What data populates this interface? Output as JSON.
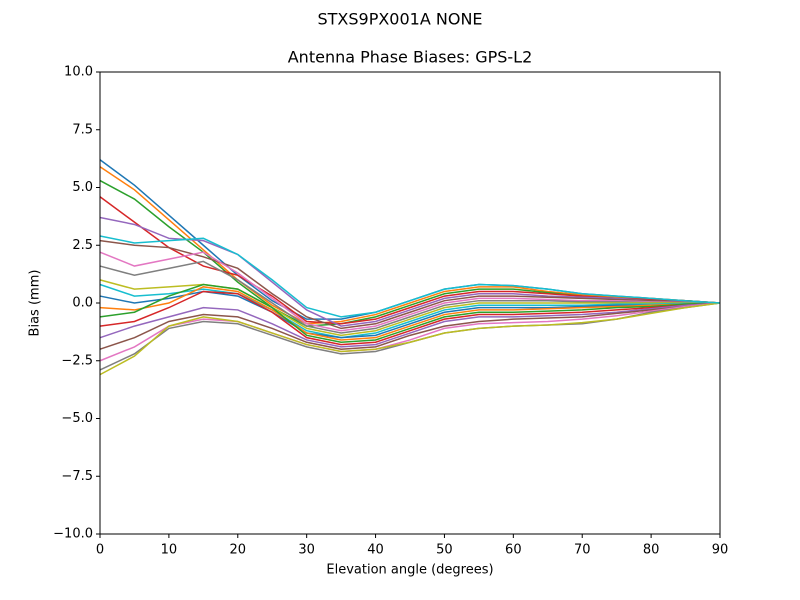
{
  "chart_data": {
    "type": "line",
    "suptitle": "STXS9PX001A      NONE",
    "title": "Antenna Phase Biases: GPS-L2",
    "xlabel": "Elevation angle (degrees)",
    "ylabel": "Bias (mm)",
    "x": [
      0,
      5,
      10,
      15,
      20,
      25,
      30,
      35,
      40,
      45,
      50,
      55,
      60,
      65,
      70,
      75,
      80,
      85,
      90
    ],
    "xlim": [
      0,
      90
    ],
    "xticks": [
      0,
      10,
      20,
      30,
      40,
      50,
      60,
      70,
      80,
      90
    ],
    "ylim": [
      -10,
      10
    ],
    "yticks": [
      {
        "value": -10,
        "label": "−10.0"
      },
      {
        "value": -7.5,
        "label": "−7.5"
      },
      {
        "value": -5,
        "label": "−5.0"
      },
      {
        "value": -2.5,
        "label": "−2.5"
      },
      {
        "value": 0,
        "label": "0.0"
      },
      {
        "value": 2.5,
        "label": "2.5"
      },
      {
        "value": 5,
        "label": "5.0"
      },
      {
        "value": 7.5,
        "label": "7.5"
      },
      {
        "value": 10,
        "label": "10.0"
      }
    ],
    "series": [
      {
        "color": "#1f77b4",
        "values": [
          6.2,
          5.1,
          3.8,
          2.5,
          1.2,
          0.1,
          -0.7,
          -0.7,
          -0.4,
          0.1,
          0.6,
          0.8,
          0.75,
          0.6,
          0.4,
          0.3,
          0.2,
          0.1,
          0
        ]
      },
      {
        "color": "#ff7f0e",
        "values": [
          5.9,
          4.9,
          3.6,
          2.3,
          1.0,
          -0.1,
          -0.9,
          -0.8,
          -0.5,
          0.0,
          0.5,
          0.7,
          0.7,
          0.5,
          0.35,
          0.25,
          0.2,
          0.1,
          0
        ]
      },
      {
        "color": "#2ca02c",
        "values": [
          5.3,
          4.5,
          3.3,
          2.2,
          0.9,
          -0.2,
          -1.0,
          -0.9,
          -0.6,
          -0.1,
          0.4,
          0.6,
          0.6,
          0.45,
          0.3,
          0.2,
          0.15,
          0.1,
          0
        ]
      },
      {
        "color": "#d62728",
        "values": [
          4.6,
          3.5,
          2.4,
          1.6,
          1.2,
          0.3,
          -0.8,
          -0.9,
          -0.7,
          -0.2,
          0.3,
          0.5,
          0.5,
          0.4,
          0.3,
          0.2,
          0.15,
          0.1,
          0
        ]
      },
      {
        "color": "#9467bd",
        "values": [
          3.7,
          3.4,
          2.8,
          2.7,
          2.1,
          0.9,
          -0.3,
          -1.0,
          -0.8,
          -0.3,
          0.2,
          0.4,
          0.4,
          0.3,
          0.25,
          0.2,
          0.1,
          0.05,
          0
        ]
      },
      {
        "color": "#8c564b",
        "values": [
          2.7,
          2.5,
          2.4,
          2.0,
          1.5,
          0.4,
          -0.6,
          -1.1,
          -0.9,
          -0.4,
          0.1,
          0.3,
          0.3,
          0.25,
          0.2,
          0.15,
          0.1,
          0.05,
          0
        ]
      },
      {
        "color": "#e377c2",
        "values": [
          2.2,
          1.6,
          1.9,
          2.2,
          1.3,
          0.2,
          -0.9,
          -1.2,
          -1.0,
          -0.5,
          0.0,
          0.2,
          0.2,
          0.15,
          0.1,
          0.1,
          0.05,
          0.02,
          0
        ]
      },
      {
        "color": "#7f7f7f",
        "values": [
          1.6,
          1.2,
          1.5,
          1.8,
          1.0,
          0.0,
          -1.0,
          -1.3,
          -1.1,
          -0.6,
          -0.1,
          0.1,
          0.1,
          0.1,
          0.05,
          0.05,
          0.02,
          0.01,
          0
        ]
      },
      {
        "color": "#bcbd22",
        "values": [
          1.0,
          0.6,
          0.7,
          0.8,
          0.6,
          -0.2,
          -1.1,
          -1.4,
          -1.2,
          -0.7,
          -0.2,
          0.0,
          0.0,
          0,
          0,
          0,
          0,
          0,
          0
        ]
      },
      {
        "color": "#17becf",
        "values": [
          0.8,
          0.3,
          0.4,
          0.6,
          0.4,
          -0.3,
          -1.2,
          -1.5,
          -1.3,
          -0.8,
          -0.3,
          -0.1,
          -0.1,
          -0.1,
          -0.1,
          -0.05,
          -0.05,
          -0.02,
          0
        ]
      },
      {
        "color": "#1f77b4",
        "values": [
          0.3,
          0.0,
          0.2,
          0.5,
          0.3,
          -0.4,
          -1.3,
          -1.5,
          -1.4,
          -0.9,
          -0.4,
          -0.2,
          -0.2,
          -0.2,
          -0.15,
          -0.1,
          -0.1,
          -0.05,
          0
        ]
      },
      {
        "color": "#ff7f0e",
        "values": [
          -0.2,
          -0.3,
          0.0,
          0.7,
          0.5,
          -0.3,
          -1.3,
          -1.6,
          -1.5,
          -1.0,
          -0.5,
          -0.3,
          -0.3,
          -0.25,
          -0.2,
          -0.15,
          -0.1,
          -0.05,
          0
        ]
      },
      {
        "color": "#2ca02c",
        "values": [
          -0.6,
          -0.4,
          0.3,
          0.8,
          0.6,
          -0.2,
          -1.4,
          -1.7,
          -1.6,
          -1.1,
          -0.6,
          -0.4,
          -0.4,
          -0.35,
          -0.3,
          -0.2,
          -0.15,
          -0.05,
          0
        ]
      },
      {
        "color": "#d62728",
        "values": [
          -1.0,
          -0.8,
          -0.2,
          0.5,
          0.4,
          -0.4,
          -1.5,
          -1.8,
          -1.7,
          -1.2,
          -0.7,
          -0.5,
          -0.5,
          -0.45,
          -0.4,
          -0.3,
          -0.2,
          -0.1,
          0
        ]
      },
      {
        "color": "#9467bd",
        "values": [
          -1.5,
          -1.0,
          -0.6,
          -0.2,
          -0.3,
          -0.9,
          -1.6,
          -1.9,
          -1.8,
          -1.3,
          -0.8,
          -0.6,
          -0.6,
          -0.55,
          -0.5,
          -0.4,
          -0.25,
          -0.1,
          0
        ]
      },
      {
        "color": "#8c564b",
        "values": [
          -2.0,
          -1.5,
          -0.8,
          -0.5,
          -0.6,
          -1.1,
          -1.7,
          -2.0,
          -1.9,
          -1.4,
          -1.0,
          -0.8,
          -0.7,
          -0.65,
          -0.6,
          -0.45,
          -0.3,
          -0.15,
          0
        ]
      },
      {
        "color": "#e377c2",
        "values": [
          -2.5,
          -1.9,
          -1.0,
          -0.7,
          -0.8,
          -1.3,
          -1.8,
          -2.1,
          -2.0,
          -1.6,
          -1.1,
          -0.9,
          -0.85,
          -0.8,
          -0.7,
          -0.55,
          -0.35,
          -0.15,
          0
        ]
      },
      {
        "color": "#7f7f7f",
        "values": [
          -2.9,
          -2.2,
          -1.1,
          -0.8,
          -0.9,
          -1.4,
          -1.9,
          -2.2,
          -2.1,
          -1.7,
          -1.3,
          -1.1,
          -1.0,
          -0.95,
          -0.9,
          -0.7,
          -0.4,
          -0.2,
          0
        ]
      },
      {
        "color": "#bcbd22",
        "values": [
          -3.1,
          -2.3,
          -1.0,
          -0.6,
          -0.8,
          -1.3,
          -1.8,
          -2.1,
          -2.0,
          -1.7,
          -1.3,
          -1.1,
          -1.0,
          -0.95,
          -0.85,
          -0.7,
          -0.45,
          -0.2,
          0
        ]
      },
      {
        "color": "#17becf",
        "values": [
          2.9,
          2.6,
          2.7,
          2.8,
          2.1,
          1.0,
          -0.2,
          -0.6,
          -0.4,
          0.1,
          0.6,
          0.8,
          0.75,
          0.6,
          0.4,
          0.3,
          0.2,
          0.1,
          0
        ]
      }
    ]
  }
}
